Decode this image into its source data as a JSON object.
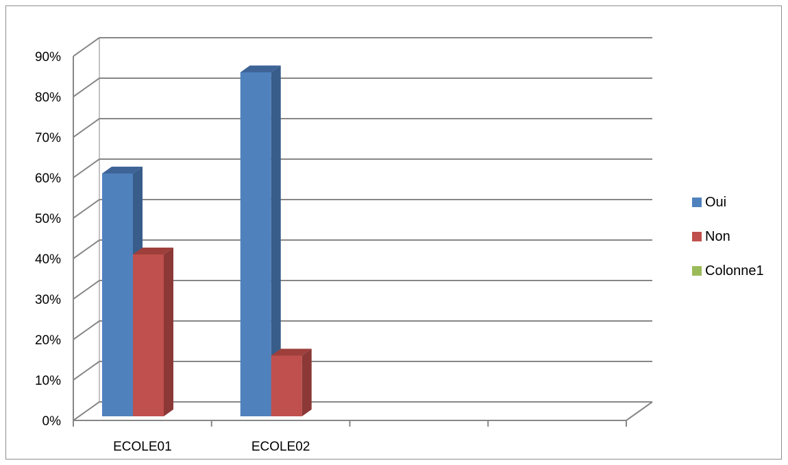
{
  "chart_data": {
    "type": "bar",
    "categories": [
      "ECOLE01",
      "ECOLE02",
      "",
      ""
    ],
    "series": [
      {
        "name": "Oui",
        "values": [
          0.6,
          0.85,
          null,
          null
        ],
        "color": "#4F81BD",
        "side_color": "#385D8A",
        "top_color": "#3E6497"
      },
      {
        "name": "Non",
        "values": [
          0.4,
          0.15,
          null,
          null
        ],
        "color": "#C0504D",
        "side_color": "#8C3836",
        "top_color": "#9E3F3C"
      },
      {
        "name": "Colonne1",
        "values": [
          null,
          null,
          null,
          null
        ],
        "color": "#9BBB59",
        "side_color": "#71893F",
        "top_color": "#7F9B48"
      }
    ],
    "y_ticks": [
      "0%",
      "10%",
      "20%",
      "30%",
      "40%",
      "50%",
      "60%",
      "70%",
      "80%",
      "90%"
    ],
    "ylim": [
      0,
      0.9
    ],
    "grid": true,
    "legend_position": "right",
    "three_d": true,
    "title": "",
    "xlabel": "",
    "ylabel": ""
  }
}
